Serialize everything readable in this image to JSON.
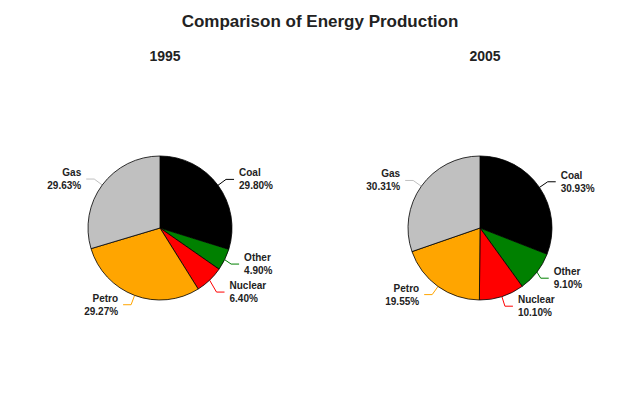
{
  "title": "Comparison of Energy Production",
  "chart_data": [
    {
      "type": "pie",
      "title": "1995",
      "categories": [
        "Coal",
        "Other",
        "Nuclear",
        "Petro",
        "Gas"
      ],
      "values": [
        29.8,
        4.9,
        6.4,
        29.27,
        29.63
      ],
      "value_labels": [
        "29.80%",
        "4.90%",
        "6.40%",
        "29.27%",
        "29.63%"
      ],
      "colors": [
        "#000000",
        "#008000",
        "#ff0000",
        "#ffa500",
        "#c0c0c0"
      ],
      "data_labels": true
    },
    {
      "type": "pie",
      "title": "2005",
      "categories": [
        "Coal",
        "Other",
        "Nuclear",
        "Petro",
        "Gas"
      ],
      "values": [
        30.93,
        9.1,
        10.1,
        19.55,
        30.31
      ],
      "value_labels": [
        "30.93%",
        "9.10%",
        "10.10%",
        "19.55%",
        "30.31%"
      ],
      "colors": [
        "#000000",
        "#008000",
        "#ff0000",
        "#ffa500",
        "#c0c0c0"
      ],
      "data_labels": true
    }
  ]
}
